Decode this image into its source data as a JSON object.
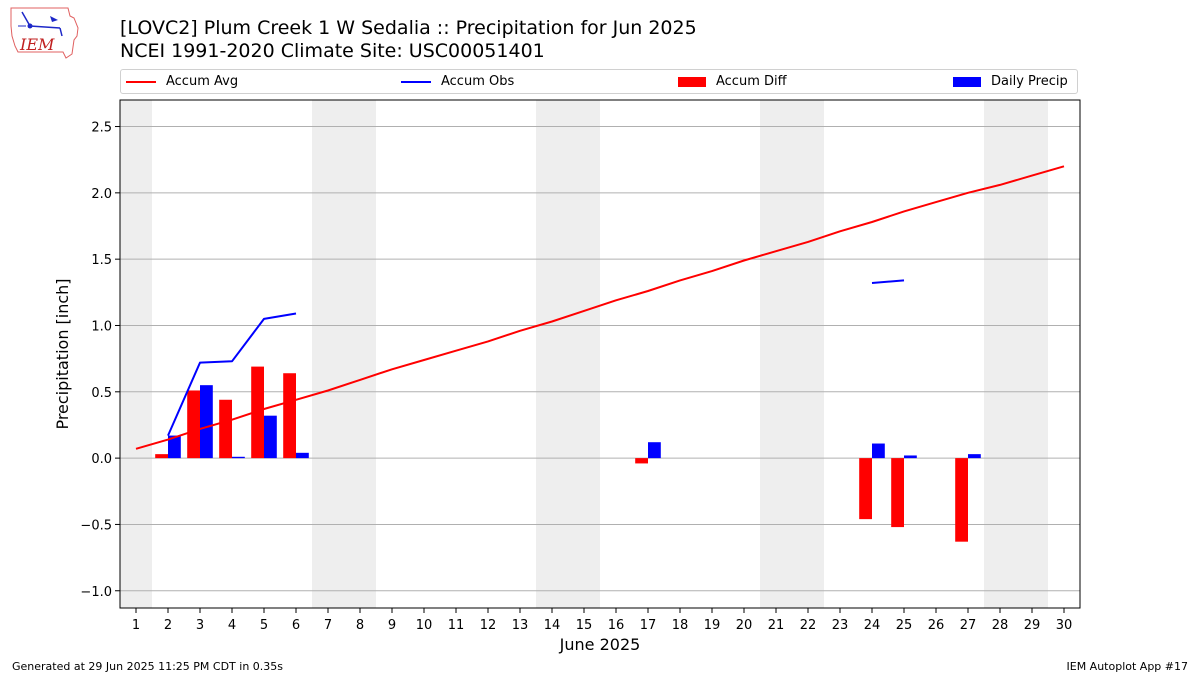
{
  "header": {
    "title_line1": "[LOVC2] Plum Creek 1 W Sedalia :: Precipitation for Jun 2025",
    "title_line2": "NCEI 1991-2020 Climate Site: USC00051401",
    "logo_text": "IEM"
  },
  "footer": {
    "left": "Generated at 29 Jun 2025 11:25 PM CDT in 0.35s",
    "right": "IEM Autoplot App #17"
  },
  "colors": {
    "avg": "#ff0000",
    "obs": "#0000ff",
    "diff": "#ff0000",
    "daily": "#0000ff",
    "weekend_band": "#eeeeee",
    "grid": "#b0b0b0"
  },
  "chart_data": {
    "type": "bar",
    "xlabel": "June 2025",
    "ylabel": "Precipitation [inch]",
    "xlim": [
      0.5,
      30.5
    ],
    "ylim": [
      -1.13,
      2.7
    ],
    "grid": true,
    "legend_placement": "top",
    "x_ticks": [
      1,
      2,
      3,
      4,
      5,
      6,
      7,
      8,
      9,
      10,
      11,
      12,
      13,
      14,
      15,
      16,
      17,
      18,
      19,
      20,
      21,
      22,
      23,
      24,
      25,
      26,
      27,
      28,
      29,
      30
    ],
    "y_ticks": [
      -1.0,
      -0.5,
      0.0,
      0.5,
      1.0,
      1.5,
      2.0,
      2.5
    ],
    "y_tick_labels": [
      "−1.0",
      "−0.5",
      "0.0",
      "0.5",
      "1.0",
      "1.5",
      "2.0",
      "2.5"
    ],
    "weekend_days": [
      1,
      7,
      8,
      14,
      15,
      21,
      22,
      28,
      29
    ],
    "series": [
      {
        "name": "Accum Avg",
        "kind": "line",
        "x": [
          1,
          2,
          3,
          4,
          5,
          6,
          7,
          8,
          9,
          10,
          11,
          12,
          13,
          14,
          15,
          16,
          17,
          18,
          19,
          20,
          21,
          22,
          23,
          24,
          25,
          26,
          27,
          28,
          29,
          30
        ],
        "values": [
          0.07,
          0.14,
          0.22,
          0.29,
          0.37,
          0.44,
          0.51,
          0.59,
          0.67,
          0.74,
          0.81,
          0.88,
          0.96,
          1.03,
          1.11,
          1.19,
          1.26,
          1.34,
          1.41,
          1.49,
          1.56,
          1.63,
          1.71,
          1.78,
          1.86,
          1.93,
          2.0,
          2.06,
          2.13,
          2.2
        ]
      },
      {
        "name": "Accum Obs",
        "kind": "line",
        "x": [
          2,
          3,
          4,
          5,
          6,
          null,
          24,
          25
        ],
        "values": [
          0.17,
          0.72,
          0.73,
          1.05,
          1.09,
          null,
          1.32,
          1.34
        ]
      },
      {
        "name": "Accum Diff",
        "kind": "bar",
        "x": [
          2,
          3,
          4,
          5,
          6,
          17,
          24,
          25,
          27
        ],
        "values": [
          0.03,
          0.51,
          0.44,
          0.69,
          0.64,
          -0.04,
          -0.46,
          -0.52,
          -0.63
        ]
      },
      {
        "name": "Daily Precip",
        "kind": "bar",
        "x": [
          2,
          3,
          4,
          5,
          6,
          17,
          24,
          25,
          27
        ],
        "values": [
          0.17,
          0.55,
          0.01,
          0.32,
          0.04,
          0.12,
          0.11,
          0.02,
          0.03
        ]
      }
    ]
  }
}
